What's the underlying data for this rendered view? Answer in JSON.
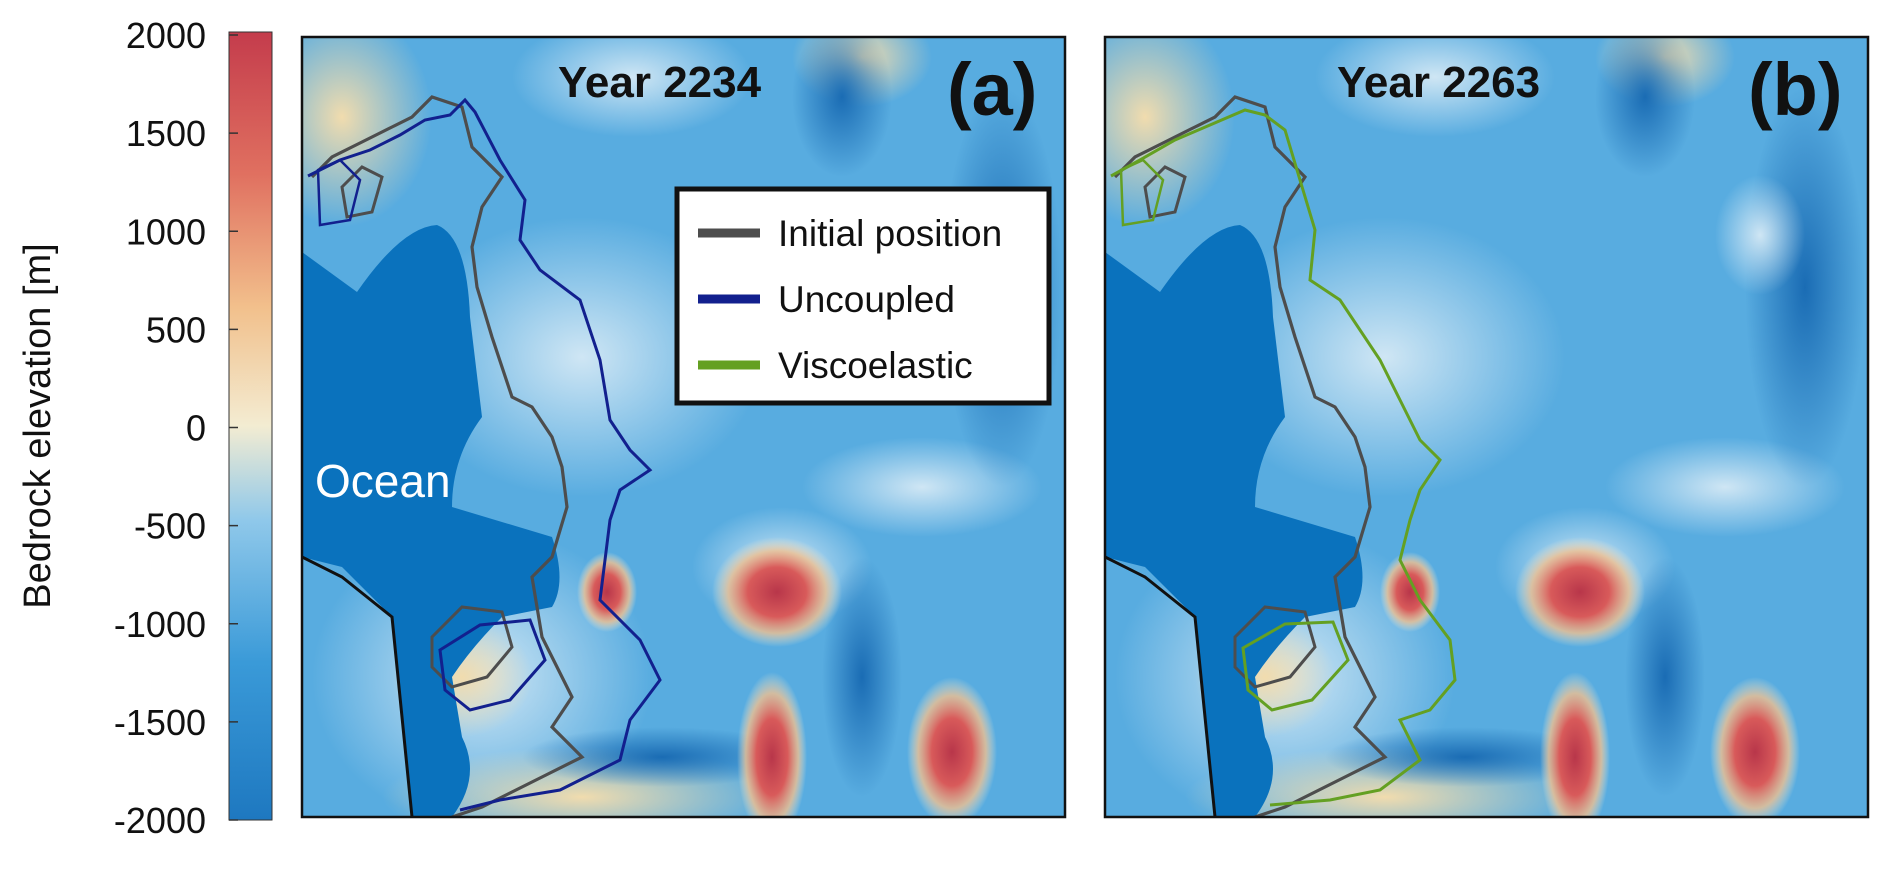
{
  "colorbar": {
    "label": "Bedrock elevation [m]",
    "ticks": [
      2000,
      1500,
      1000,
      500,
      0,
      -500,
      -1000,
      -1500,
      -2000
    ],
    "range": [
      -2000,
      2000
    ],
    "colors": [
      "#1e78c0",
      "#3a9ad8",
      "#8fc8ea",
      "#f3ecd2",
      "#f2c08c",
      "#e07060",
      "#c43c4c"
    ]
  },
  "panels": [
    {
      "year_label": "Year 2234",
      "panel_letter": "(a)",
      "ocean_label": "Ocean",
      "line_color": "#12208e"
    },
    {
      "year_label": "Year 2263",
      "panel_letter": "(b)",
      "ocean_label": "",
      "line_color": "#64a022"
    }
  ],
  "legend": {
    "items": [
      {
        "label": "Initial position",
        "color": "#4d4d4d"
      },
      {
        "label": "Uncoupled",
        "color": "#12208e"
      },
      {
        "label": "Viscoelastic",
        "color": "#64a022"
      }
    ]
  },
  "palette": {
    "ocean": "#0a72bd",
    "bedrock_base": "#58ace0",
    "high_bedrock": "#c43c4c",
    "initial_line": "#4d4d4d"
  }
}
